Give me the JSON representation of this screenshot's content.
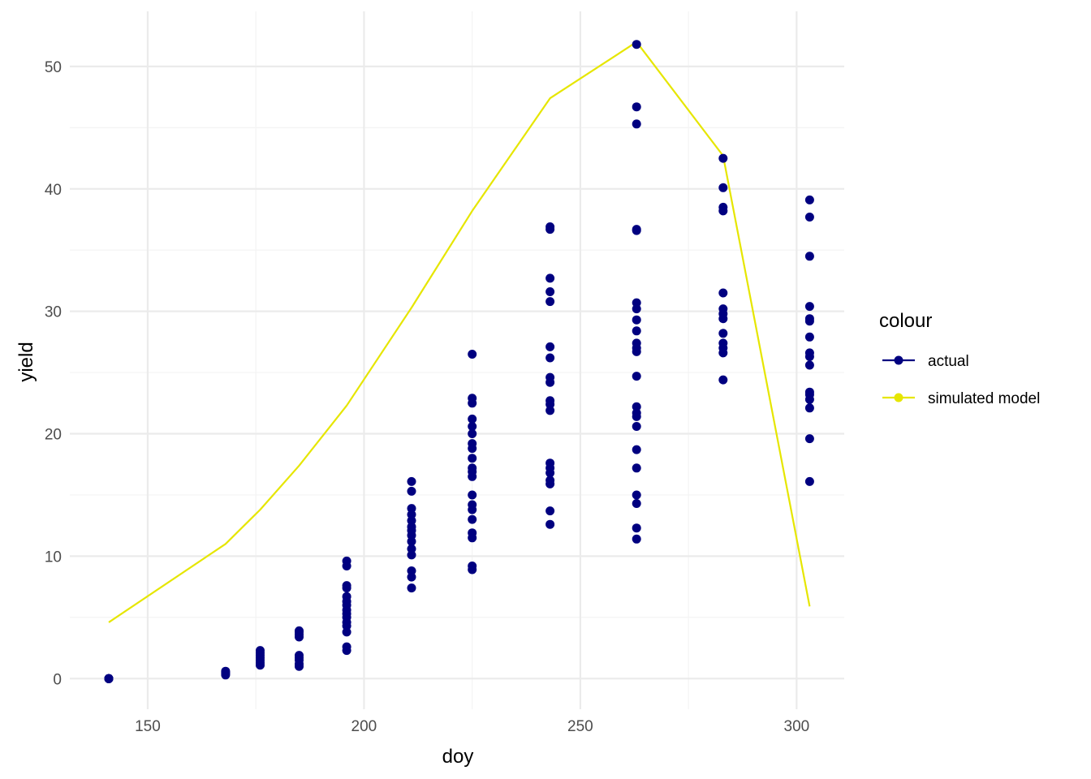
{
  "chart_data": {
    "type": "scatter",
    "xlabel": "doy",
    "ylabel": "yield",
    "xlim": [
      132,
      311
    ],
    "ylim": [
      -2.5,
      54.5
    ],
    "x_ticks": [
      150,
      200,
      250,
      300
    ],
    "y_ticks": [
      0,
      10,
      20,
      30,
      40,
      50
    ],
    "x_tick_labels": [
      "150",
      "200",
      "250",
      "300"
    ],
    "y_tick_labels": [
      "0",
      "10",
      "20",
      "30",
      "40",
      "50"
    ],
    "grid": true,
    "legend": {
      "title": "colour",
      "placement": "right",
      "entries": [
        {
          "label": "actual",
          "color": "#000080"
        },
        {
          "label": "simulated model",
          "color": "#e6e600"
        }
      ]
    },
    "series": [
      {
        "name": "actual",
        "type": "scatter",
        "color": "#000080",
        "points": [
          [
            141,
            0
          ],
          [
            141,
            0
          ],
          [
            141,
            0
          ],
          [
            141,
            0
          ],
          [
            141,
            0
          ],
          [
            141,
            0
          ],
          [
            168,
            0.3
          ],
          [
            168,
            0.4
          ],
          [
            168,
            0.5
          ],
          [
            168,
            0.6
          ],
          [
            176,
            1.1
          ],
          [
            176,
            1.3
          ],
          [
            176,
            1.5
          ],
          [
            176,
            1.7
          ],
          [
            176,
            1.9
          ],
          [
            176,
            2.1
          ],
          [
            176,
            2.3
          ],
          [
            185,
            1.0
          ],
          [
            185,
            1.2
          ],
          [
            185,
            1.5
          ],
          [
            185,
            1.7
          ],
          [
            185,
            1.9
          ],
          [
            185,
            3.4
          ],
          [
            185,
            3.6
          ],
          [
            185,
            3.8
          ],
          [
            185,
            3.9
          ],
          [
            196,
            2.3
          ],
          [
            196,
            2.6
          ],
          [
            196,
            3.8
          ],
          [
            196,
            4.3
          ],
          [
            196,
            4.6
          ],
          [
            196,
            5.0
          ],
          [
            196,
            5.3
          ],
          [
            196,
            5.6
          ],
          [
            196,
            6.0
          ],
          [
            196,
            6.3
          ],
          [
            196,
            6.7
          ],
          [
            196,
            7.4
          ],
          [
            196,
            7.6
          ],
          [
            196,
            9.2
          ],
          [
            196,
            9.6
          ],
          [
            211,
            7.4
          ],
          [
            211,
            8.3
          ],
          [
            211,
            8.8
          ],
          [
            211,
            10.1
          ],
          [
            211,
            10.6
          ],
          [
            211,
            11.2
          ],
          [
            211,
            11.7
          ],
          [
            211,
            12.1
          ],
          [
            211,
            12.4
          ],
          [
            211,
            12.9
          ],
          [
            211,
            13.4
          ],
          [
            211,
            13.9
          ],
          [
            211,
            15.3
          ],
          [
            211,
            16.1
          ],
          [
            225,
            8.9
          ],
          [
            225,
            9.2
          ],
          [
            225,
            11.5
          ],
          [
            225,
            11.9
          ],
          [
            225,
            13.0
          ],
          [
            225,
            13.8
          ],
          [
            225,
            14.2
          ],
          [
            225,
            15.0
          ],
          [
            225,
            16.5
          ],
          [
            225,
            16.9
          ],
          [
            225,
            17.2
          ],
          [
            225,
            18.0
          ],
          [
            225,
            18.8
          ],
          [
            225,
            19.2
          ],
          [
            225,
            20.0
          ],
          [
            225,
            20.6
          ],
          [
            225,
            21.2
          ],
          [
            225,
            22.5
          ],
          [
            225,
            22.9
          ],
          [
            225,
            26.5
          ],
          [
            243,
            12.6
          ],
          [
            243,
            13.7
          ],
          [
            243,
            15.9
          ],
          [
            243,
            16.2
          ],
          [
            243,
            16.8
          ],
          [
            243,
            17.2
          ],
          [
            243,
            17.6
          ],
          [
            243,
            21.9
          ],
          [
            243,
            22.4
          ],
          [
            243,
            22.7
          ],
          [
            243,
            24.2
          ],
          [
            243,
            24.6
          ],
          [
            243,
            26.2
          ],
          [
            243,
            27.1
          ],
          [
            243,
            30.8
          ],
          [
            243,
            31.6
          ],
          [
            243,
            32.7
          ],
          [
            243,
            36.7
          ],
          [
            243,
            36.9
          ],
          [
            263,
            11.4
          ],
          [
            263,
            12.3
          ],
          [
            263,
            14.3
          ],
          [
            263,
            15.0
          ],
          [
            263,
            17.2
          ],
          [
            263,
            18.7
          ],
          [
            263,
            20.6
          ],
          [
            263,
            21.4
          ],
          [
            263,
            21.7
          ],
          [
            263,
            22.2
          ],
          [
            263,
            24.7
          ],
          [
            263,
            26.7
          ],
          [
            263,
            27.0
          ],
          [
            263,
            27.4
          ],
          [
            263,
            28.4
          ],
          [
            263,
            29.3
          ],
          [
            263,
            30.2
          ],
          [
            263,
            30.7
          ],
          [
            263,
            36.6
          ],
          [
            263,
            36.7
          ],
          [
            263,
            45.3
          ],
          [
            263,
            46.7
          ],
          [
            263,
            51.8
          ],
          [
            283,
            24.4
          ],
          [
            283,
            26.6
          ],
          [
            283,
            27.0
          ],
          [
            283,
            27.4
          ],
          [
            283,
            28.2
          ],
          [
            283,
            29.4
          ],
          [
            283,
            29.8
          ],
          [
            283,
            30.2
          ],
          [
            283,
            31.5
          ],
          [
            283,
            38.2
          ],
          [
            283,
            38.5
          ],
          [
            283,
            40.1
          ],
          [
            283,
            42.5
          ],
          [
            303,
            16.1
          ],
          [
            303,
            19.6
          ],
          [
            303,
            22.1
          ],
          [
            303,
            22.8
          ],
          [
            303,
            23.2
          ],
          [
            303,
            23.4
          ],
          [
            303,
            25.6
          ],
          [
            303,
            26.3
          ],
          [
            303,
            26.6
          ],
          [
            303,
            27.9
          ],
          [
            303,
            29.2
          ],
          [
            303,
            29.4
          ],
          [
            303,
            30.4
          ],
          [
            303,
            34.5
          ],
          [
            303,
            37.7
          ],
          [
            303,
            39.1
          ]
        ]
      },
      {
        "name": "simulated model",
        "type": "line",
        "color": "#e6e600",
        "points": [
          [
            141,
            4.6
          ],
          [
            168,
            11.0
          ],
          [
            176,
            13.8
          ],
          [
            185,
            17.4
          ],
          [
            196,
            22.3
          ],
          [
            211,
            30.3
          ],
          [
            225,
            38.2
          ],
          [
            243,
            47.4
          ],
          [
            263,
            52.0
          ],
          [
            283,
            42.7
          ],
          [
            303,
            5.9
          ]
        ]
      }
    ]
  }
}
